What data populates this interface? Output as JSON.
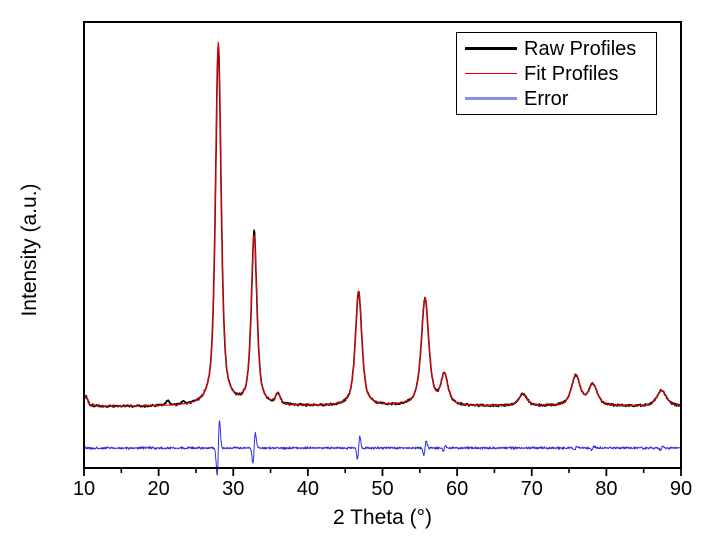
{
  "figure": {
    "background": "#ffffff"
  },
  "chart_data": {
    "type": "line",
    "title": "",
    "xlabel": "2 Theta (°)",
    "ylabel": "Intensity (a.u.)",
    "xlim": [
      10,
      90
    ],
    "y_axis": {
      "ticks": [],
      "note": "arbitrary units, no tick labels"
    },
    "grid": false,
    "x_major_ticks": [
      10,
      20,
      30,
      40,
      50,
      60,
      70,
      80,
      90
    ],
    "x_minor_ticks": [
      15,
      25,
      35,
      45,
      55,
      65,
      75,
      85
    ],
    "legend": {
      "position": "top-right",
      "entries": [
        {
          "label": "Raw Profiles",
          "color": "#000000",
          "thickness_px": 2.6
        },
        {
          "label": "Fit Profiles",
          "color": "#e60000",
          "thickness_px": 1.6
        },
        {
          "label": "Error",
          "color": "#8c8cf0",
          "thickness_px": 2.6
        }
      ]
    },
    "series": [
      {
        "name": "Raw Profiles",
        "color": "#000000",
        "role": "raw"
      },
      {
        "name": "Fit Profiles",
        "color": "#e60000",
        "role": "fit"
      },
      {
        "name": "Error",
        "color": "#2e2ee0",
        "role": "error"
      }
    ],
    "peaks": [
      {
        "two_theta": 10.25,
        "rel_intensity": 0.028,
        "hwhm_deg": 0.3
      },
      {
        "two_theta": 28.0,
        "rel_intensity": 1.0,
        "hwhm_deg": 0.45
      },
      {
        "two_theta": 32.8,
        "rel_intensity": 0.465,
        "hwhm_deg": 0.45
      },
      {
        "two_theta": 36.0,
        "rel_intensity": 0.03,
        "hwhm_deg": 0.35
      },
      {
        "two_theta": 46.8,
        "rel_intensity": 0.315,
        "hwhm_deg": 0.52
      },
      {
        "two_theta": 55.7,
        "rel_intensity": 0.295,
        "hwhm_deg": 0.6
      },
      {
        "two_theta": 58.3,
        "rel_intensity": 0.083,
        "hwhm_deg": 0.55
      },
      {
        "two_theta": 68.8,
        "rel_intensity": 0.033,
        "hwhm_deg": 0.65
      },
      {
        "two_theta": 75.9,
        "rel_intensity": 0.083,
        "hwhm_deg": 0.7
      },
      {
        "two_theta": 78.2,
        "rel_intensity": 0.058,
        "hwhm_deg": 0.7
      },
      {
        "two_theta": 87.4,
        "rel_intensity": 0.044,
        "hwhm_deg": 0.75
      }
    ],
    "raw_noise_rel": 0.0036,
    "raw_only_features": [
      {
        "two_theta": 21.2,
        "rel_intensity": 0.012,
        "hwhm_deg": 0.3
      },
      {
        "two_theta": 23.3,
        "rel_intensity": 0.008,
        "hwhm_deg": 0.2
      },
      {
        "two_theta": 32.8,
        "rel_intensity": 0.014,
        "hwhm_deg": 0.1
      },
      {
        "two_theta": 28.0,
        "rel_intensity": -0.011,
        "hwhm_deg": 0.08
      }
    ],
    "error_series": {
      "noise_rel": 0.004,
      "spike_hwhm_deg": 0.16,
      "color": "#2e2ee0",
      "spikes": [
        {
          "two_theta": 28.0,
          "amp_rel": 0.124
        },
        {
          "two_theta": 32.8,
          "amp_rel": 0.069
        },
        {
          "two_theta": 46.8,
          "amp_rel": 0.05
        },
        {
          "two_theta": 55.7,
          "amp_rel": 0.033
        },
        {
          "two_theta": 58.3,
          "amp_rel": 0.012
        },
        {
          "two_theta": 75.9,
          "amp_rel": 0.01
        },
        {
          "two_theta": 78.2,
          "amp_rel": 0.008
        },
        {
          "two_theta": 87.4,
          "amp_rel": 0.008
        }
      ]
    }
  }
}
